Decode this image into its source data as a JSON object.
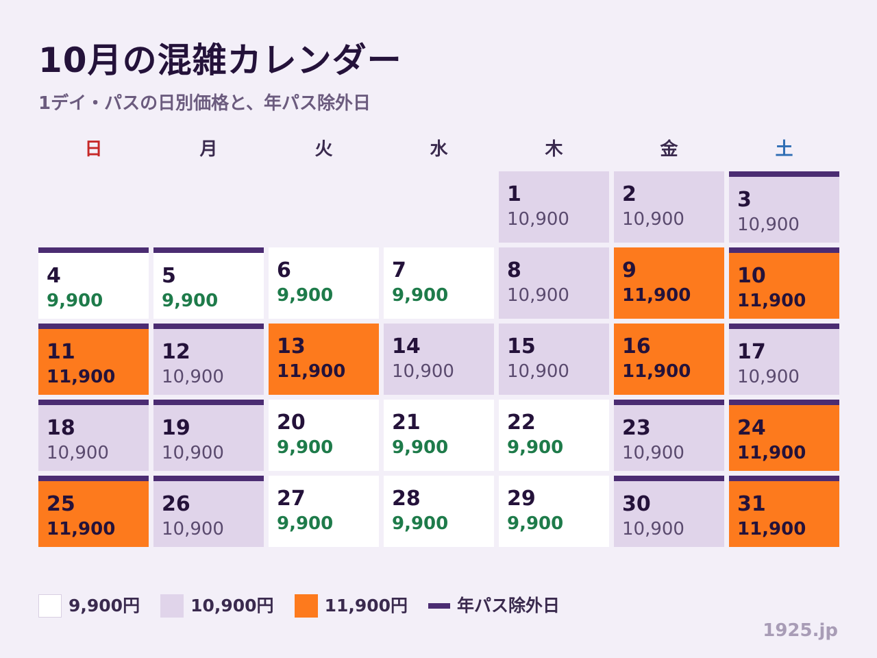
{
  "title": "10月の混雑カレンダー",
  "subtitle": "1デイ・パスの日別価格と、年パス除外日",
  "weekdays": [
    {
      "label": "日",
      "color": "#c62828"
    },
    {
      "label": "月",
      "color": "#3a2a4e"
    },
    {
      "label": "火",
      "color": "#3a2a4e"
    },
    {
      "label": "水",
      "color": "#3a2a4e"
    },
    {
      "label": "木",
      "color": "#3a2a4e"
    },
    {
      "label": "金",
      "color": "#3a2a4e"
    },
    {
      "label": "土",
      "color": "#2e6db4"
    }
  ],
  "leading_blank_days": 4,
  "days": [
    {
      "day": "1",
      "price": "10,900",
      "excluded": false
    },
    {
      "day": "2",
      "price": "10,900",
      "excluded": false
    },
    {
      "day": "3",
      "price": "10,900",
      "excluded": true
    },
    {
      "day": "4",
      "price": "9,900",
      "excluded": true
    },
    {
      "day": "5",
      "price": "9,900",
      "excluded": true
    },
    {
      "day": "6",
      "price": "9,900",
      "excluded": false
    },
    {
      "day": "7",
      "price": "9,900",
      "excluded": false
    },
    {
      "day": "8",
      "price": "10,900",
      "excluded": false
    },
    {
      "day": "9",
      "price": "11,900",
      "excluded": false
    },
    {
      "day": "10",
      "price": "11,900",
      "excluded": true
    },
    {
      "day": "11",
      "price": "11,900",
      "excluded": true
    },
    {
      "day": "12",
      "price": "10,900",
      "excluded": true
    },
    {
      "day": "13",
      "price": "11,900",
      "excluded": false
    },
    {
      "day": "14",
      "price": "10,900",
      "excluded": false
    },
    {
      "day": "15",
      "price": "10,900",
      "excluded": false
    },
    {
      "day": "16",
      "price": "11,900",
      "excluded": false
    },
    {
      "day": "17",
      "price": "10,900",
      "excluded": true
    },
    {
      "day": "18",
      "price": "10,900",
      "excluded": true
    },
    {
      "day": "19",
      "price": "10,900",
      "excluded": true
    },
    {
      "day": "20",
      "price": "9,900",
      "excluded": false
    },
    {
      "day": "21",
      "price": "9,900",
      "excluded": false
    },
    {
      "day": "22",
      "price": "9,900",
      "excluded": false
    },
    {
      "day": "23",
      "price": "10,900",
      "excluded": true
    },
    {
      "day": "24",
      "price": "11,900",
      "excluded": true
    },
    {
      "day": "25",
      "price": "11,900",
      "excluded": true
    },
    {
      "day": "26",
      "price": "10,900",
      "excluded": true
    },
    {
      "day": "27",
      "price": "9,900",
      "excluded": false
    },
    {
      "day": "28",
      "price": "9,900",
      "excluded": false
    },
    {
      "day": "29",
      "price": "9,900",
      "excluded": false
    },
    {
      "day": "30",
      "price": "10,900",
      "excluded": true
    },
    {
      "day": "31",
      "price": "11,900",
      "excluded": true
    }
  ],
  "price_colors": {
    "9,900": "#ffffff",
    "10,900": "#e0d4ea",
    "11,900": "#fd7a1d",
    "excluded_bar": "#4b2c72"
  },
  "legend": {
    "price_9900": "9,900円",
    "price_10900": "10,900円",
    "price_11900": "11,900円",
    "excluded": "年パス除外日"
  },
  "credit": "1925.jp"
}
